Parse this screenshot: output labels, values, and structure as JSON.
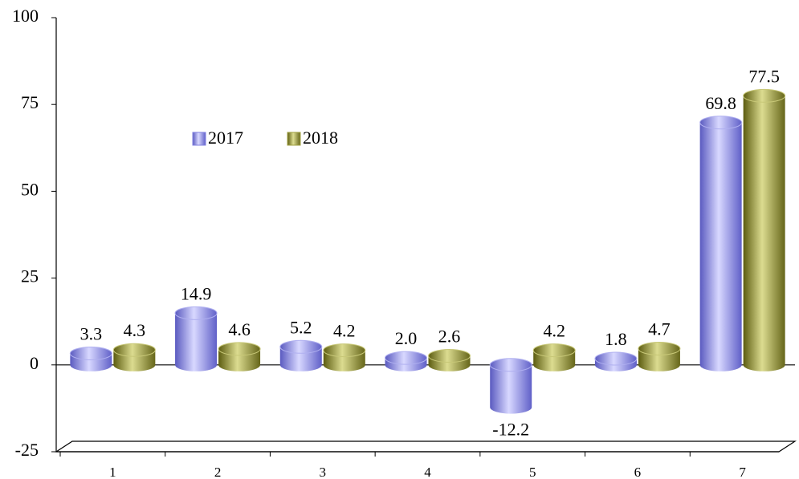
{
  "chart_data": {
    "type": "bar",
    "categories": [
      "1",
      "2",
      "3",
      "4",
      "5",
      "6",
      "7"
    ],
    "series": [
      {
        "name": "2017",
        "color": "#8080e0",
        "values": [
          3.3,
          14.9,
          5.2,
          2.0,
          -12.2,
          1.8,
          69.8
        ],
        "value_labels": [
          "3.3",
          "14.9",
          "5.2",
          "2.0",
          "-12.2",
          "1.8",
          "69.8"
        ]
      },
      {
        "name": "2018",
        "color": "#a0a040",
        "values": [
          4.3,
          4.6,
          4.2,
          2.6,
          4.2,
          4.7,
          77.5
        ],
        "value_labels": [
          "4.3",
          "4.6",
          "4.2",
          "2.6",
          "4.2",
          "4.7",
          "77.5"
        ]
      }
    ],
    "ylim": [
      -25,
      100
    ],
    "yticks": [
      -25,
      0,
      25,
      50,
      75,
      100
    ]
  }
}
